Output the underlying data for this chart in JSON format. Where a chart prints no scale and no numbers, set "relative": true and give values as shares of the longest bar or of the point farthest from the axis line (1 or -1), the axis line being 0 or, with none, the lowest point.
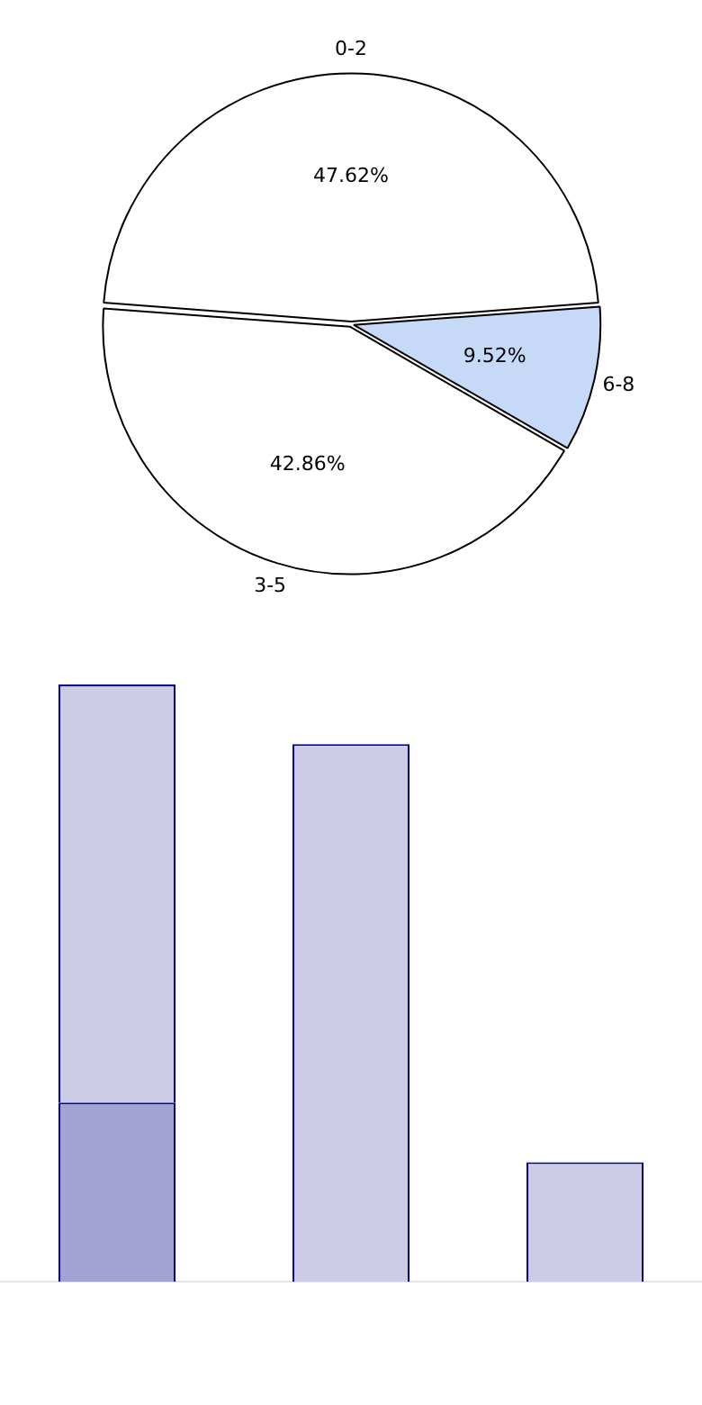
{
  "chart_data": [
    {
      "type": "pie",
      "categories": [
        "0-2",
        "6-8",
        "3-5"
      ],
      "values": [
        47.62,
        9.52,
        42.86
      ],
      "colors": [
        "#ffffff",
        "#c6d9f7",
        "#ffffff"
      ],
      "value_labels": [
        "47.62%",
        "9.52%",
        "42.86%"
      ],
      "legend": false
    },
    {
      "type": "bar",
      "relative": true,
      "stacked": true,
      "categories": [
        null,
        null,
        null
      ],
      "legend": false,
      "series": [
        {
          "color": "#a3a3d3",
          "values": [
            0.3,
            null,
            null
          ]
        },
        {
          "color": "#ccccE6",
          "values": [
            0.7,
            0.9,
            0.2
          ]
        }
      ]
    }
  ]
}
